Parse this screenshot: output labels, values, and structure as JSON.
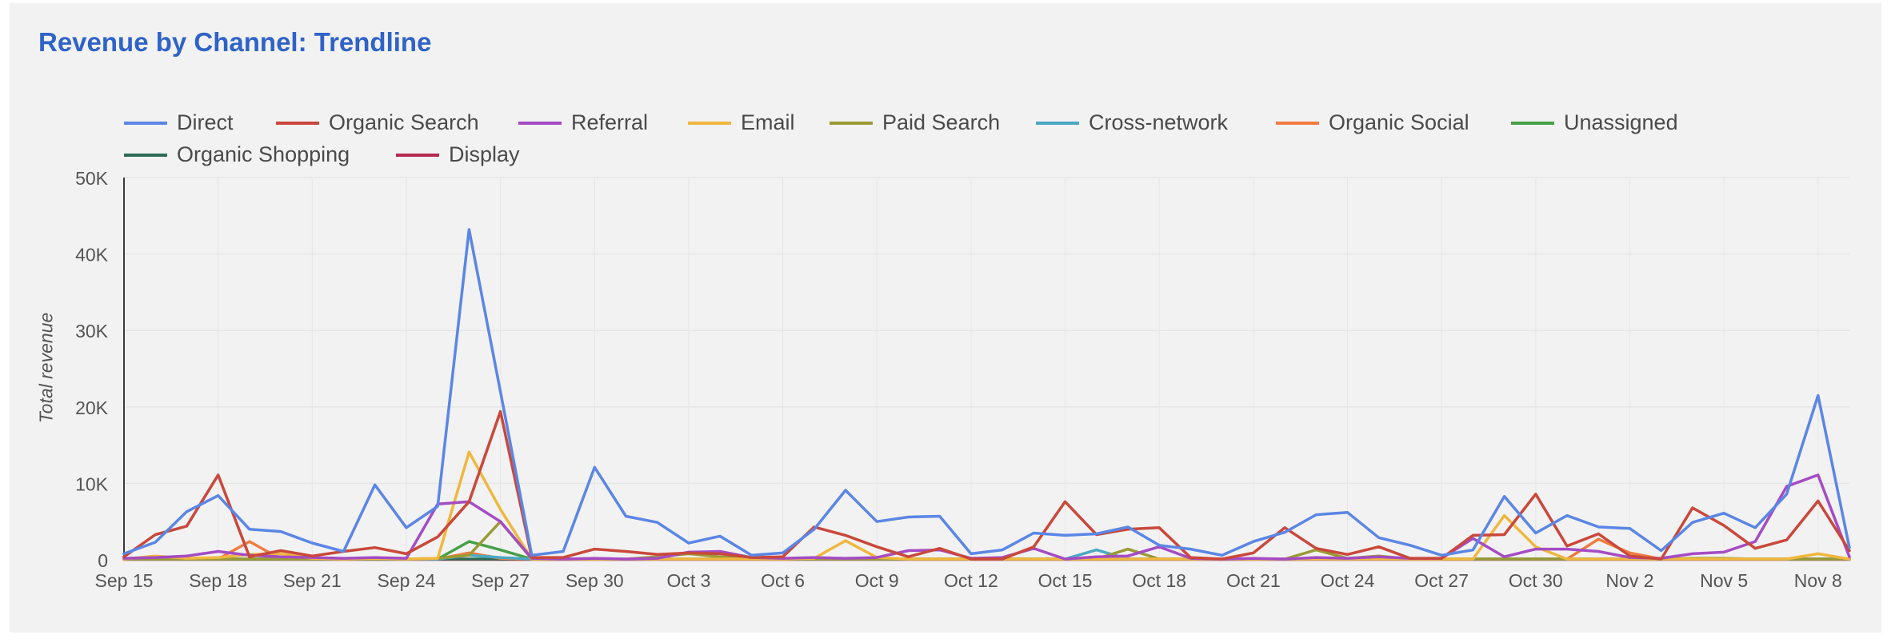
{
  "colors": {
    "background": "#f2f2f2",
    "title": "#2f63c7",
    "axis": "#3a3a3a",
    "grid": "#e6e6e6",
    "tick_text": "#555555"
  },
  "chart_data": {
    "type": "line",
    "title": "Revenue by Channel: Trendline",
    "xlabel": "",
    "ylabel": "Total revenue",
    "ylim": [
      0,
      50000
    ],
    "yticks": [
      0,
      10000,
      20000,
      30000,
      40000,
      50000
    ],
    "ytick_labels": [
      "0",
      "10K",
      "20K",
      "30K",
      "40K",
      "50K"
    ],
    "xtick_labels": [
      "Sep 15",
      "Sep 18",
      "Sep 21",
      "Sep 24",
      "Sep 27",
      "Sep 30",
      "Oct 3",
      "Oct 6",
      "Oct 9",
      "Oct 12",
      "Oct 15",
      "Oct 18",
      "Oct 21",
      "Oct 24",
      "Oct 27",
      "Oct 30",
      "Nov 2",
      "Nov 5",
      "Nov 8"
    ],
    "legend_position": "top-left",
    "grid": true,
    "x": [
      "Sep 15",
      "Sep 16",
      "Sep 17",
      "Sep 18",
      "Sep 19",
      "Sep 20",
      "Sep 21",
      "Sep 22",
      "Sep 23",
      "Sep 24",
      "Sep 25",
      "Sep 26",
      "Sep 27",
      "Sep 28",
      "Sep 29",
      "Sep 30",
      "Oct 1",
      "Oct 2",
      "Oct 3",
      "Oct 4",
      "Oct 5",
      "Oct 6",
      "Oct 7",
      "Oct 8",
      "Oct 9",
      "Oct 10",
      "Oct 11",
      "Oct 12",
      "Oct 13",
      "Oct 14",
      "Oct 15",
      "Oct 16",
      "Oct 17",
      "Oct 18",
      "Oct 19",
      "Oct 20",
      "Oct 21",
      "Oct 22",
      "Oct 23",
      "Oct 24",
      "Oct 25",
      "Oct 26",
      "Oct 27",
      "Oct 28",
      "Oct 29",
      "Oct 30",
      "Oct 31",
      "Nov 1",
      "Nov 2",
      "Nov 3",
      "Nov 4",
      "Nov 5",
      "Nov 6",
      "Nov 7",
      "Nov 8",
      "Nov 9"
    ],
    "series": [
      {
        "name": "Direct",
        "color": "#5b86e5",
        "values": [
          800,
          2300,
          6300,
          8400,
          4000,
          3700,
          2200,
          1100,
          9800,
          4200,
          7000,
          43200,
          22000,
          600,
          1100,
          12100,
          5700,
          4900,
          2200,
          3100,
          600,
          900,
          4000,
          9100,
          5000,
          5600,
          5700,
          800,
          1300,
          3500,
          3200,
          3400,
          4300,
          1900,
          1400,
          600,
          2400,
          3600,
          5900,
          6200,
          2900,
          1900,
          600,
          1300,
          8300,
          3500,
          5800,
          4300,
          4100,
          1200,
          4900,
          6100,
          4200,
          8600,
          21500,
          1600
        ]
      },
      {
        "name": "Organic Search",
        "color": "#c9483b",
        "values": [
          400,
          3300,
          4400,
          11100,
          400,
          1200,
          500,
          1100,
          1600,
          800,
          3000,
          7600,
          19400,
          300,
          300,
          1400,
          1100,
          700,
          900,
          800,
          300,
          400,
          4300,
          3200,
          1700,
          400,
          1500,
          100,
          100,
          1700,
          7600,
          3300,
          4000,
          4200,
          300,
          100,
          900,
          4200,
          1500,
          700,
          1700,
          200,
          200,
          3200,
          3300,
          8600,
          1800,
          3400,
          500,
          100,
          6800,
          4500,
          1500,
          2600,
          7700,
          1200
        ]
      },
      {
        "name": "Referral",
        "color": "#a54bc4",
        "values": [
          200,
          300,
          500,
          1100,
          600,
          400,
          300,
          200,
          300,
          200,
          7300,
          7600,
          5000,
          200,
          100,
          200,
          100,
          200,
          1000,
          1100,
          300,
          200,
          300,
          200,
          300,
          1200,
          1300,
          200,
          300,
          1500,
          100,
          400,
          500,
          1700,
          200,
          100,
          200,
          100,
          300,
          200,
          400,
          200,
          200,
          2800,
          400,
          1400,
          1400,
          1100,
          300,
          200,
          800,
          1000,
          2400,
          9600,
          11100,
          400
        ]
      },
      {
        "name": "Email",
        "color": "#f0b73e",
        "values": [
          100,
          500,
          200,
          300,
          700,
          800,
          200,
          100,
          200,
          100,
          200,
          14100,
          6600,
          100,
          100,
          100,
          100,
          100,
          100,
          100,
          100,
          100,
          200,
          2500,
          300,
          100,
          100,
          100,
          100,
          100,
          100,
          100,
          100,
          100,
          100,
          100,
          100,
          100,
          100,
          100,
          100,
          100,
          100,
          100,
          5800,
          1700,
          100,
          100,
          100,
          100,
          100,
          100,
          100,
          100,
          800,
          100
        ]
      },
      {
        "name": "Paid Search",
        "color": "#9a9a35",
        "values": [
          100,
          100,
          100,
          100,
          100,
          100,
          100,
          100,
          100,
          100,
          200,
          600,
          5000,
          100,
          100,
          100,
          100,
          400,
          800,
          400,
          100,
          100,
          100,
          100,
          100,
          100,
          100,
          100,
          100,
          100,
          100,
          100,
          1400,
          100,
          100,
          100,
          100,
          100,
          1300,
          200,
          500,
          100,
          100,
          100,
          100,
          100,
          100,
          100,
          100,
          100,
          200,
          200,
          100,
          100,
          100,
          100
        ]
      },
      {
        "name": "Cross-network",
        "color": "#4ba8c2",
        "values": [
          100,
          100,
          100,
          100,
          100,
          100,
          100,
          100,
          100,
          100,
          100,
          600,
          300,
          100,
          100,
          100,
          100,
          100,
          100,
          100,
          100,
          100,
          100,
          100,
          100,
          100,
          100,
          100,
          100,
          100,
          100,
          1300,
          100,
          100,
          100,
          100,
          100,
          100,
          100,
          100,
          100,
          100,
          100,
          100,
          100,
          100,
          100,
          100,
          100,
          100,
          100,
          100,
          100,
          100,
          100,
          100
        ]
      },
      {
        "name": "Organic Social",
        "color": "#f07b3f",
        "values": [
          100,
          100,
          100,
          100,
          2400,
          100,
          100,
          100,
          100,
          100,
          100,
          900,
          200,
          100,
          100,
          100,
          100,
          100,
          100,
          100,
          100,
          100,
          100,
          100,
          100,
          100,
          100,
          100,
          100,
          100,
          100,
          100,
          100,
          100,
          100,
          100,
          100,
          100,
          100,
          100,
          100,
          100,
          100,
          100,
          100,
          100,
          100,
          2700,
          900,
          100,
          100,
          100,
          100,
          100,
          100,
          100
        ]
      },
      {
        "name": "Unassigned",
        "color": "#47a047",
        "values": [
          100,
          100,
          100,
          100,
          100,
          100,
          100,
          100,
          100,
          100,
          100,
          2400,
          1300,
          100,
          100,
          100,
          100,
          100,
          100,
          100,
          100,
          100,
          100,
          100,
          100,
          100,
          100,
          100,
          100,
          100,
          100,
          100,
          100,
          100,
          100,
          100,
          100,
          100,
          100,
          100,
          100,
          100,
          100,
          100,
          100,
          100,
          100,
          100,
          100,
          100,
          100,
          100,
          100,
          100,
          100,
          100
        ]
      },
      {
        "name": "Organic Shopping",
        "color": "#2e6b55",
        "values": [
          100,
          100,
          100,
          100,
          100,
          100,
          100,
          100,
          100,
          100,
          100,
          100,
          100,
          100,
          100,
          100,
          100,
          100,
          100,
          100,
          100,
          100,
          100,
          100,
          100,
          100,
          100,
          100,
          100,
          100,
          100,
          100,
          100,
          100,
          100,
          100,
          100,
          100,
          100,
          100,
          100,
          100,
          100,
          100,
          100,
          100,
          100,
          100,
          100,
          100,
          100,
          100,
          100,
          100,
          100,
          100
        ]
      },
      {
        "name": "Display",
        "color": "#b52a4f",
        "values": [
          50,
          50,
          50,
          50,
          50,
          50,
          50,
          50,
          50,
          50,
          50,
          50,
          50,
          50,
          50,
          50,
          50,
          50,
          50,
          50,
          50,
          50,
          50,
          50,
          50,
          50,
          50,
          50,
          50,
          50,
          50,
          50,
          50,
          50,
          50,
          50,
          50,
          50,
          50,
          50,
          50,
          50,
          50,
          50,
          50,
          50,
          50,
          50,
          50,
          50,
          50,
          50,
          50,
          50,
          50,
          50
        ]
      }
    ]
  }
}
